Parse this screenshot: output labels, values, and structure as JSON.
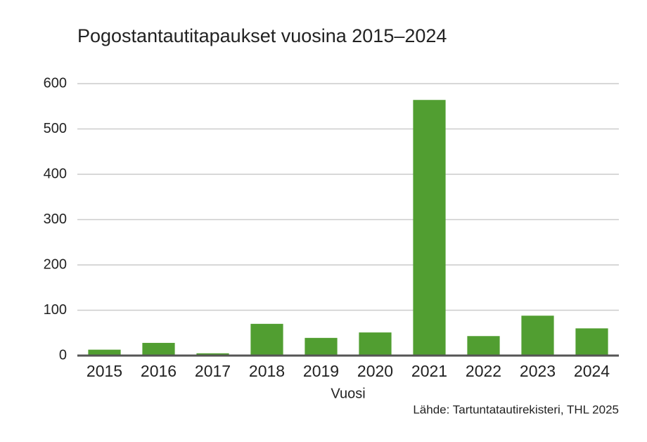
{
  "chart_data": {
    "type": "bar",
    "title": "Pogostantautitapaukset vuosina 2015–2024",
    "x_label": "Vuosi",
    "source": "Lähde: Tartuntatautirekisteri, THL 2025",
    "categories": [
      "2015",
      "2016",
      "2017",
      "2018",
      "2019",
      "2020",
      "2021",
      "2022",
      "2023",
      "2024"
    ],
    "values": [
      13,
      28,
      5,
      70,
      39,
      51,
      564,
      43,
      88,
      60
    ],
    "color": "#519e31",
    "ylim": [
      0,
      600
    ],
    "yticks": [
      0,
      100,
      200,
      300,
      400,
      500,
      600
    ],
    "grid": true
  }
}
